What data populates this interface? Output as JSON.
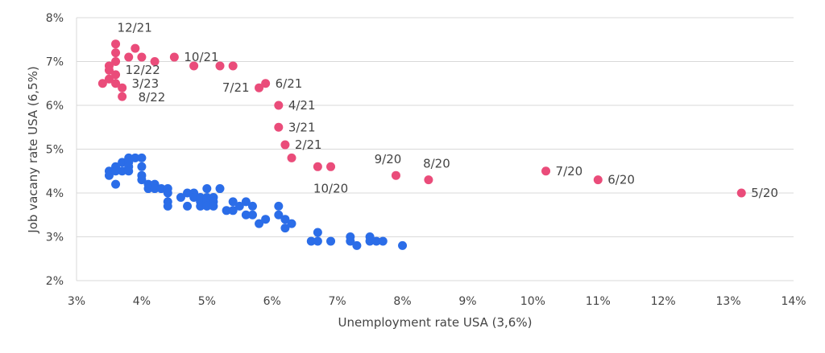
{
  "chart_data": {
    "type": "scatter",
    "xlabel": "Unemployment rate USA (3,6%)",
    "ylabel": "Job vacany rate USA (6,5%)",
    "xlim": [
      3,
      14
    ],
    "ylim": [
      2,
      8
    ],
    "x_ticks": [
      "3%",
      "4%",
      "5%",
      "6%",
      "7%",
      "8%",
      "9%",
      "10%",
      "11%",
      "12%",
      "13%",
      "14%"
    ],
    "y_ticks": [
      "2%",
      "3%",
      "4%",
      "5%",
      "6%",
      "7%",
      "8%"
    ],
    "grid": "horizontal",
    "colors": {
      "pink": "#ea4c7a",
      "blue": "#2b6de8"
    },
    "series": [
      {
        "color": "#2b6de8",
        "points": [
          [
            3.5,
            4.5
          ],
          [
            3.5,
            4.4
          ],
          [
            3.6,
            4.6
          ],
          [
            3.6,
            4.2
          ],
          [
            3.6,
            4.5
          ],
          [
            3.7,
            4.7
          ],
          [
            3.7,
            4.5
          ],
          [
            3.8,
            4.8
          ],
          [
            3.8,
            4.7
          ],
          [
            3.8,
            4.6
          ],
          [
            3.8,
            4.5
          ],
          [
            3.9,
            4.8
          ],
          [
            4.0,
            4.8
          ],
          [
            4.0,
            4.6
          ],
          [
            4.0,
            4.4
          ],
          [
            4.0,
            4.3
          ],
          [
            4.1,
            4.2
          ],
          [
            4.1,
            4.1
          ],
          [
            4.2,
            4.2
          ],
          [
            4.2,
            4.1
          ],
          [
            4.3,
            4.1
          ],
          [
            4.4,
            4.1
          ],
          [
            4.4,
            4.0
          ],
          [
            4.4,
            3.8
          ],
          [
            4.4,
            3.7
          ],
          [
            4.6,
            3.9
          ],
          [
            4.7,
            4.0
          ],
          [
            4.7,
            3.7
          ],
          [
            4.8,
            4.0
          ],
          [
            4.8,
            3.9
          ],
          [
            4.9,
            3.9
          ],
          [
            4.9,
            3.8
          ],
          [
            4.9,
            3.7
          ],
          [
            5.0,
            4.1
          ],
          [
            5.0,
            3.9
          ],
          [
            5.0,
            3.8
          ],
          [
            5.0,
            3.7
          ],
          [
            5.1,
            3.9
          ],
          [
            5.1,
            3.8
          ],
          [
            5.1,
            3.7
          ],
          [
            5.2,
            4.1
          ],
          [
            5.3,
            3.6
          ],
          [
            5.4,
            3.8
          ],
          [
            5.4,
            3.6
          ],
          [
            5.5,
            3.7
          ],
          [
            5.6,
            3.8
          ],
          [
            5.6,
            3.5
          ],
          [
            5.7,
            3.7
          ],
          [
            5.7,
            3.5
          ],
          [
            5.8,
            3.3
          ],
          [
            5.9,
            3.4
          ],
          [
            6.1,
            3.7
          ],
          [
            6.1,
            3.5
          ],
          [
            6.2,
            3.4
          ],
          [
            6.2,
            3.2
          ],
          [
            6.3,
            3.3
          ],
          [
            6.6,
            2.9
          ],
          [
            6.7,
            3.1
          ],
          [
            6.7,
            2.9
          ],
          [
            6.9,
            2.9
          ],
          [
            7.2,
            3.0
          ],
          [
            7.2,
            2.9
          ],
          [
            7.3,
            2.8
          ],
          [
            7.5,
            3.0
          ],
          [
            7.5,
            2.9
          ],
          [
            7.6,
            2.9
          ],
          [
            7.7,
            2.9
          ],
          [
            8.0,
            2.8
          ]
        ]
      },
      {
        "color": "#ea4c7a",
        "points": [
          [
            3.4,
            6.5
          ],
          [
            3.5,
            6.9
          ],
          [
            3.5,
            6.8
          ],
          [
            3.5,
            6.6
          ],
          [
            3.6,
            7.4
          ],
          [
            3.6,
            7.2
          ],
          [
            3.6,
            7.0
          ],
          [
            3.6,
            6.7
          ],
          [
            3.6,
            6.5
          ],
          [
            3.7,
            6.4
          ],
          [
            3.7,
            6.2
          ],
          [
            3.8,
            7.1
          ],
          [
            3.9,
            7.3
          ],
          [
            4.0,
            7.1
          ],
          [
            4.2,
            7.0
          ],
          [
            4.5,
            7.1
          ],
          [
            4.8,
            6.9
          ],
          [
            5.2,
            6.9
          ],
          [
            5.4,
            6.9
          ],
          [
            5.8,
            6.4
          ],
          [
            5.9,
            6.5
          ],
          [
            6.1,
            6.0
          ],
          [
            6.1,
            5.5
          ],
          [
            6.2,
            5.1
          ],
          [
            6.3,
            4.8
          ],
          [
            6.7,
            4.6
          ],
          [
            6.9,
            4.6
          ],
          [
            7.9,
            4.4
          ],
          [
            8.4,
            4.3
          ],
          [
            10.2,
            4.5
          ],
          [
            11.0,
            4.3
          ],
          [
            13.2,
            4.0
          ]
        ]
      }
    ],
    "annotations": [
      {
        "text": "12/21",
        "x": 3.6,
        "y": 7.4,
        "pos": "above"
      },
      {
        "text": "12/22",
        "x": 3.6,
        "y": 6.7,
        "pos": "right"
      },
      {
        "text": "3/23",
        "x": 3.6,
        "y": 6.5,
        "pos": "right"
      },
      {
        "text": "8/22",
        "x": 3.7,
        "y": 6.2,
        "pos": "right"
      },
      {
        "text": "10/21",
        "x": 4.5,
        "y": 7.1,
        "pos": "right"
      },
      {
        "text": "7/21",
        "x": 5.8,
        "y": 6.4,
        "pos": "left"
      },
      {
        "text": "6/21",
        "x": 5.9,
        "y": 6.5,
        "pos": "right"
      },
      {
        "text": "4/21",
        "x": 6.1,
        "y": 6.0,
        "pos": "right"
      },
      {
        "text": "3/21",
        "x": 6.1,
        "y": 5.5,
        "pos": "right"
      },
      {
        "text": "2/21",
        "x": 6.2,
        "y": 5.1,
        "pos": "right"
      },
      {
        "text": "10/20",
        "x": 6.9,
        "y": 4.6,
        "pos": "below"
      },
      {
        "text": "9/20",
        "x": 7.9,
        "y": 4.4,
        "pos": "above"
      },
      {
        "text": "8/20",
        "x": 8.4,
        "y": 4.3,
        "pos": "above"
      },
      {
        "text": "7/20",
        "x": 10.2,
        "y": 4.5,
        "pos": "right"
      },
      {
        "text": "6/20",
        "x": 11.0,
        "y": 4.3,
        "pos": "right"
      },
      {
        "text": "5/20",
        "x": 13.2,
        "y": 4.0,
        "pos": "right"
      }
    ]
  }
}
